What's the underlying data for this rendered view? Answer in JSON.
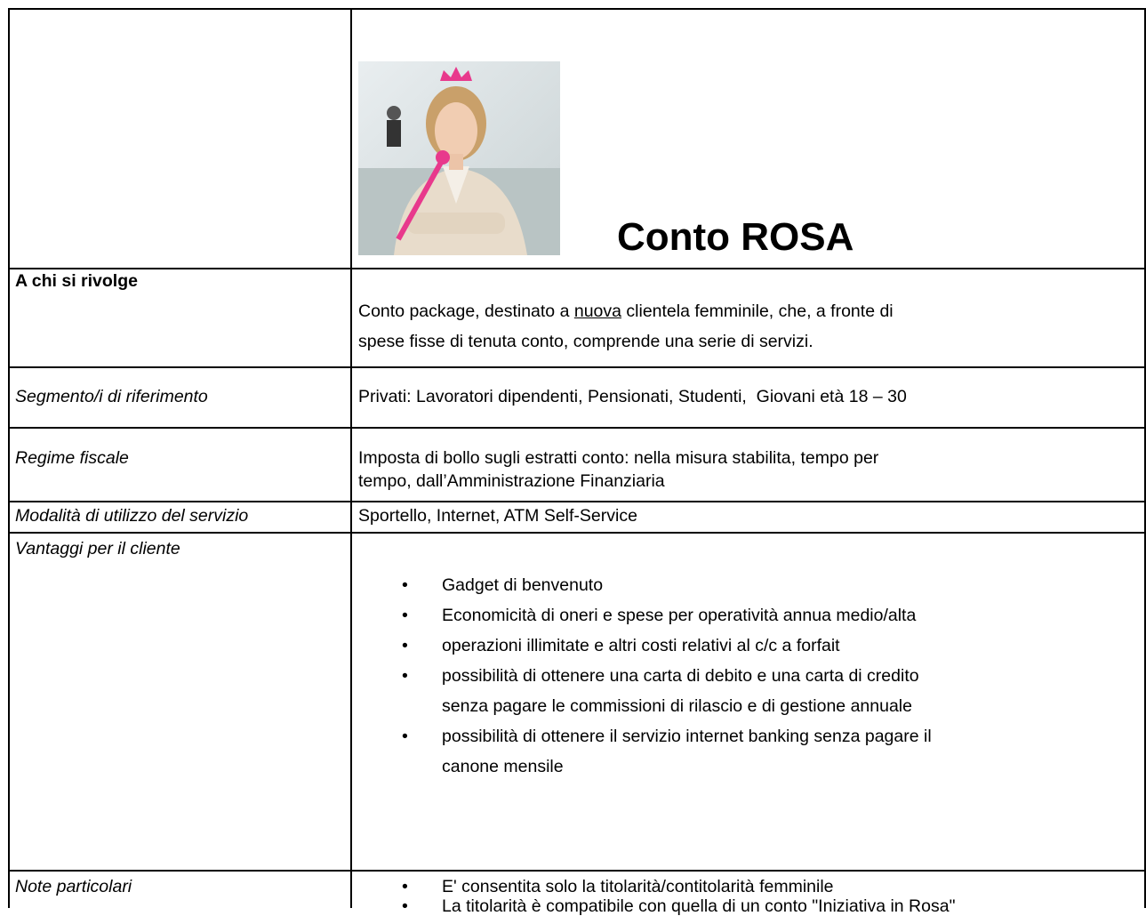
{
  "header": {
    "title": "Conto ROSA"
  },
  "rows": [
    {
      "label": "A chi si rivolge",
      "lines": [
        [
          "Conto package, destinato a ",
          "nuova",
          " clientela femminile, che, a fronte di"
        ],
        [
          "spese fisse di tenuta conto, comprende una serie di servizi."
        ]
      ]
    },
    {
      "label": "Segmento/i di riferimento",
      "lines": [
        [
          "Privati: Lavoratori dipendenti, Pensionati, Studenti,  Giovani età 18 – 30"
        ]
      ]
    },
    {
      "label": "Regime fiscale",
      "lines": [
        [
          "Imposta di bollo sugli estratti conto: nella misura stabilita, tempo per"
        ],
        [
          "tempo, dall’Amministrazione Finanziaria"
        ]
      ]
    },
    {
      "label": "Modalità di utilizzo del servizio",
      "lines": [
        [
          "Sportello, Internet, ATM Self-Service"
        ]
      ]
    },
    {
      "label": "Vantaggi per il cliente",
      "items": [
        [
          "Gadget di benvenuto"
        ],
        [
          "Economicità di oneri e spese per operatività annua medio/alta"
        ],
        [
          "operazioni illimitate e altri costi relativi al c/c a forfait"
        ],
        [
          "possibilità di ottenere una carta di debito e una carta di credito",
          "senza pagare le commissioni di rilascio e di gestione annuale"
        ],
        [
          "possibilità di ottenere il servizio internet banking senza pagare il",
          "canone mensile"
        ]
      ]
    },
    {
      "label": "Note particolari",
      "items": [
        [
          "E' consentita solo la titolarità/contitolarità femminile"
        ],
        [
          "La titolarità è compatibile con quella di un conto \"Iniziativa in Rosa\""
        ]
      ]
    }
  ]
}
